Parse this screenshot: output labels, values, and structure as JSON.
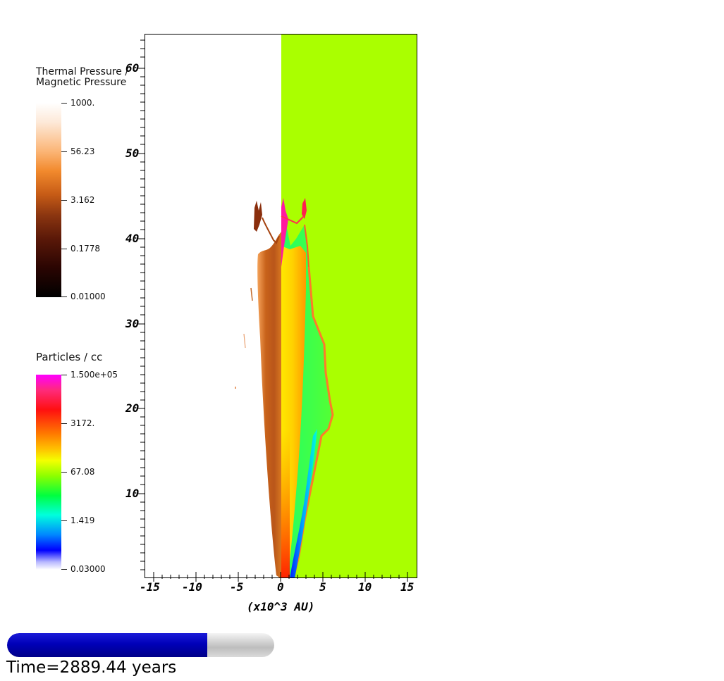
{
  "colorbar_pressure": {
    "title_line1": "Thermal Pressure /",
    "title_line2": "Magnetic Pressure",
    "labels": [
      "1000.",
      "56.23",
      "3.162",
      "0.1778",
      "0.01000"
    ]
  },
  "colorbar_density": {
    "title": "Particles / cc",
    "labels": [
      "1.500e+05",
      "3172.",
      "67.08",
      "1.419",
      "0.03000"
    ]
  },
  "plot": {
    "x_ticks": [
      "-15",
      "-10",
      "-5",
      "0",
      "5",
      "10",
      "15"
    ],
    "y_ticks": [
      "10",
      "20",
      "30",
      "40",
      "50",
      "60"
    ],
    "x_axis_title": "(x10^3 AU)",
    "background_color": "#aaff00"
  },
  "time_bar": {
    "progress": 0.75,
    "label": "Time=2889.44 years"
  }
}
